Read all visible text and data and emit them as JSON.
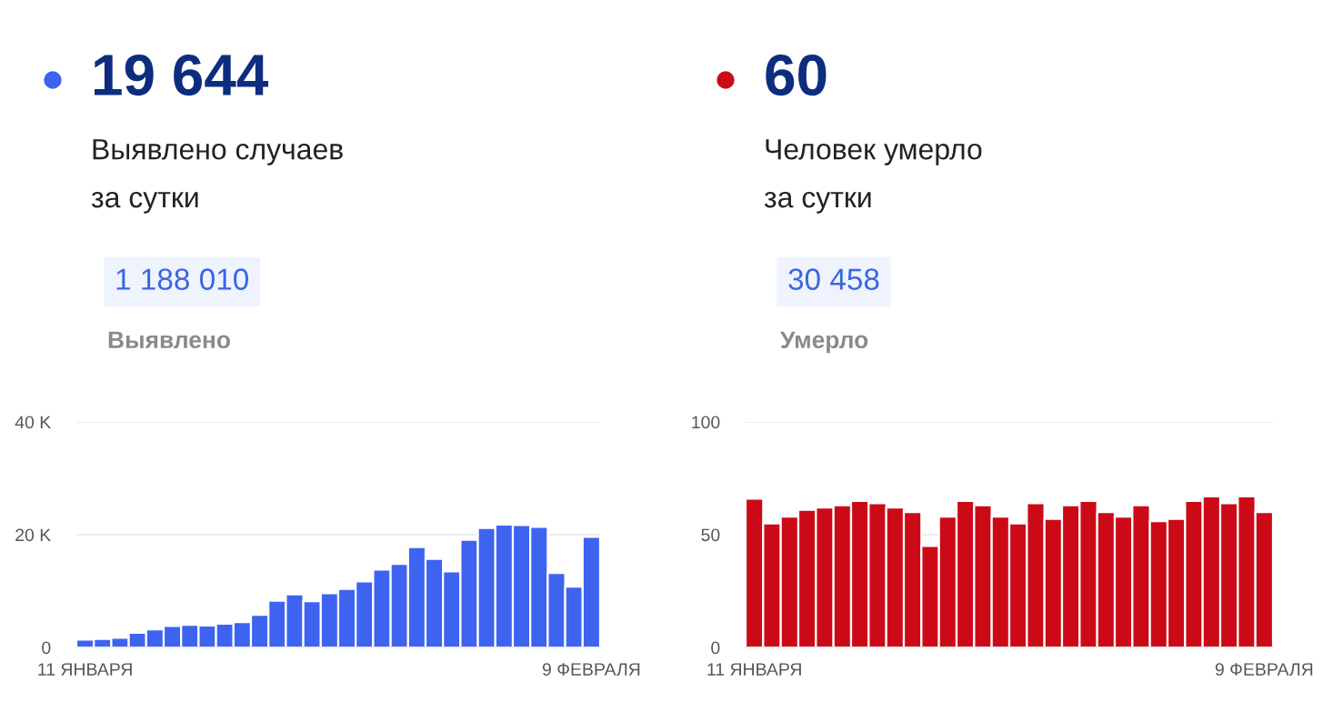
{
  "chart_data": [
    {
      "type": "bar",
      "title": "19 644",
      "subtitle": "Выявлено случаев\nза сутки",
      "annotations": [
        "1 188 010",
        "Выявлено"
      ],
      "categories": [
        "11 ЯНВАРЯ",
        null,
        null,
        null,
        null,
        null,
        null,
        null,
        null,
        null,
        null,
        null,
        null,
        null,
        null,
        null,
        null,
        null,
        null,
        null,
        null,
        null,
        null,
        null,
        null,
        null,
        null,
        null,
        null,
        "9 ФЕВРАЛЯ"
      ],
      "series": [
        {
          "color": "#3d63f0",
          "values": [
            1.4,
            1.5,
            1.7,
            2.6,
            3.2,
            3.8,
            4.0,
            3.9,
            4.2,
            4.5,
            5.8,
            8.3,
            9.4,
            8.2,
            9.6,
            10.4,
            11.7,
            13.8,
            14.8,
            17.8,
            15.7,
            13.5,
            19.1,
            21.2,
            21.8,
            21.7,
            21.4,
            13.2,
            10.8,
            19.6
          ]
        }
      ],
      "ylim": [
        0,
        40
      ],
      "yticks": [
        0,
        {
          "value": 20,
          "label": "20 K"
        },
        {
          "value": 40,
          "label": "40 K"
        }
      ],
      "grid": "y"
    },
    {
      "type": "bar",
      "title": "60",
      "subtitle": "Человек умерло\nза сутки",
      "annotations": [
        "30 458",
        "Умерло"
      ],
      "categories": [
        "11 ЯНВАРЯ",
        null,
        null,
        null,
        null,
        null,
        null,
        null,
        null,
        null,
        null,
        null,
        null,
        null,
        null,
        null,
        null,
        null,
        null,
        null,
        null,
        null,
        null,
        null,
        null,
        null,
        null,
        null,
        null,
        "9 ФЕВРАЛЯ"
      ],
      "series": [
        {
          "color": "#cc0a17",
          "values": [
            66,
            55,
            58,
            61,
            62,
            63,
            65,
            64,
            62,
            60,
            45,
            58,
            65,
            63,
            58,
            55,
            64,
            57,
            63,
            65,
            60,
            58,
            63,
            56,
            57,
            65,
            67,
            64,
            67,
            60
          ]
        }
      ],
      "ylim": [
        0,
        100
      ],
      "yticks": [
        0,
        50,
        100
      ],
      "grid": "y"
    }
  ]
}
